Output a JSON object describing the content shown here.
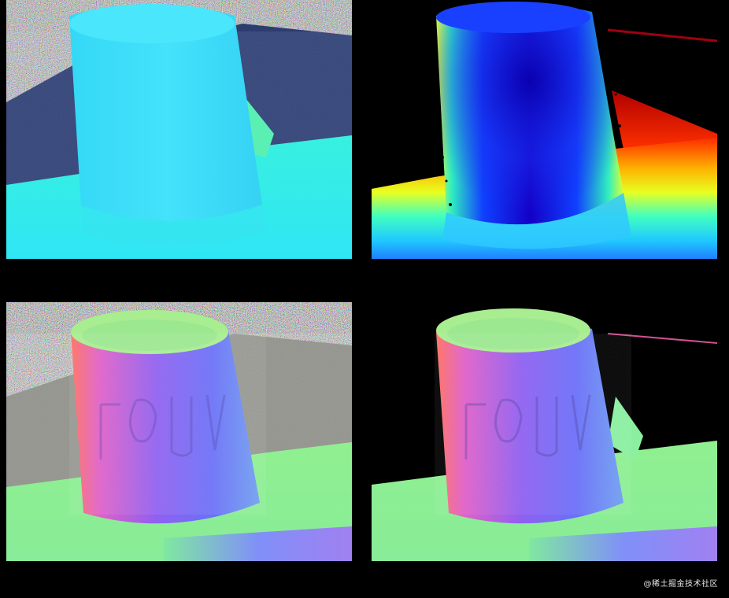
{
  "figure": {
    "panels": [
      {
        "id": "top-left",
        "kind": "noisy-depth-map"
      },
      {
        "id": "top-right",
        "kind": "refined-depth-map"
      },
      {
        "id": "bottom-left",
        "kind": "noisy-normal-map"
      },
      {
        "id": "bottom-right",
        "kind": "refined-normal-map"
      }
    ]
  },
  "watermark": {
    "text": "@稀土掘金技术社区"
  }
}
